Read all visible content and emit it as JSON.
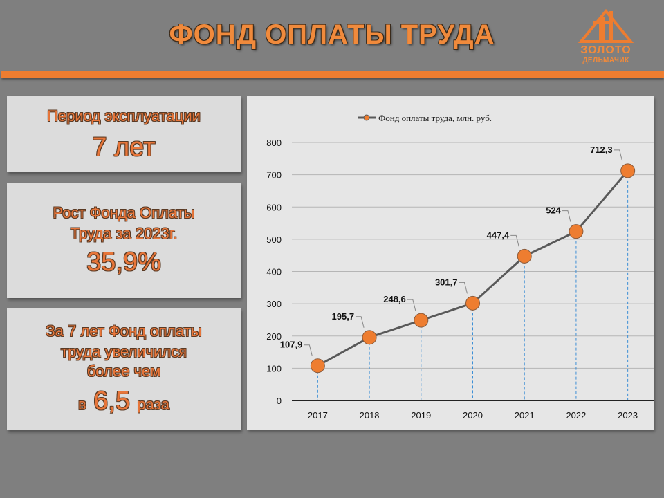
{
  "header": {
    "title": "ФОНД ОПЛАТЫ ТРУДА",
    "logo_line1": "ЗОЛОТО",
    "logo_line2": "ДЕЛЬМАЧИК",
    "accent_color": "#ee7d30"
  },
  "panels": {
    "period": {
      "label": "Период эксплуатации",
      "value": "7 лет"
    },
    "growth": {
      "label_line1": "Рост Фонда Оплаты",
      "label_line2": "Труда за 2023г.",
      "value": "35,9%"
    },
    "increase": {
      "line1": "За 7 лет Фонд оплаты",
      "line2": "труда увеличился",
      "line3": "более чем",
      "prefix": "в",
      "value": "6,5",
      "suffix": "раза"
    }
  },
  "chart_data": {
    "type": "line",
    "title": "",
    "legend_position": "top",
    "x": [
      "2017",
      "2018",
      "2019",
      "2020",
      "2021",
      "2022",
      "2023"
    ],
    "series": [
      {
        "name": "Фонд оплаты труда, млн. руб.",
        "values": [
          107.9,
          195.7,
          248.6,
          301.7,
          447.4,
          524,
          712.3
        ],
        "labels": [
          "107,9",
          "195,7",
          "248,6",
          "301,7",
          "447,4",
          "524",
          "712,3"
        ],
        "line_color": "#595959",
        "marker_color": "#ee7d30"
      }
    ],
    "ylim": [
      0,
      800
    ],
    "yticks": [
      0,
      100,
      200,
      300,
      400,
      500,
      600,
      700,
      800
    ],
    "grid": true,
    "drop_lines": true
  }
}
